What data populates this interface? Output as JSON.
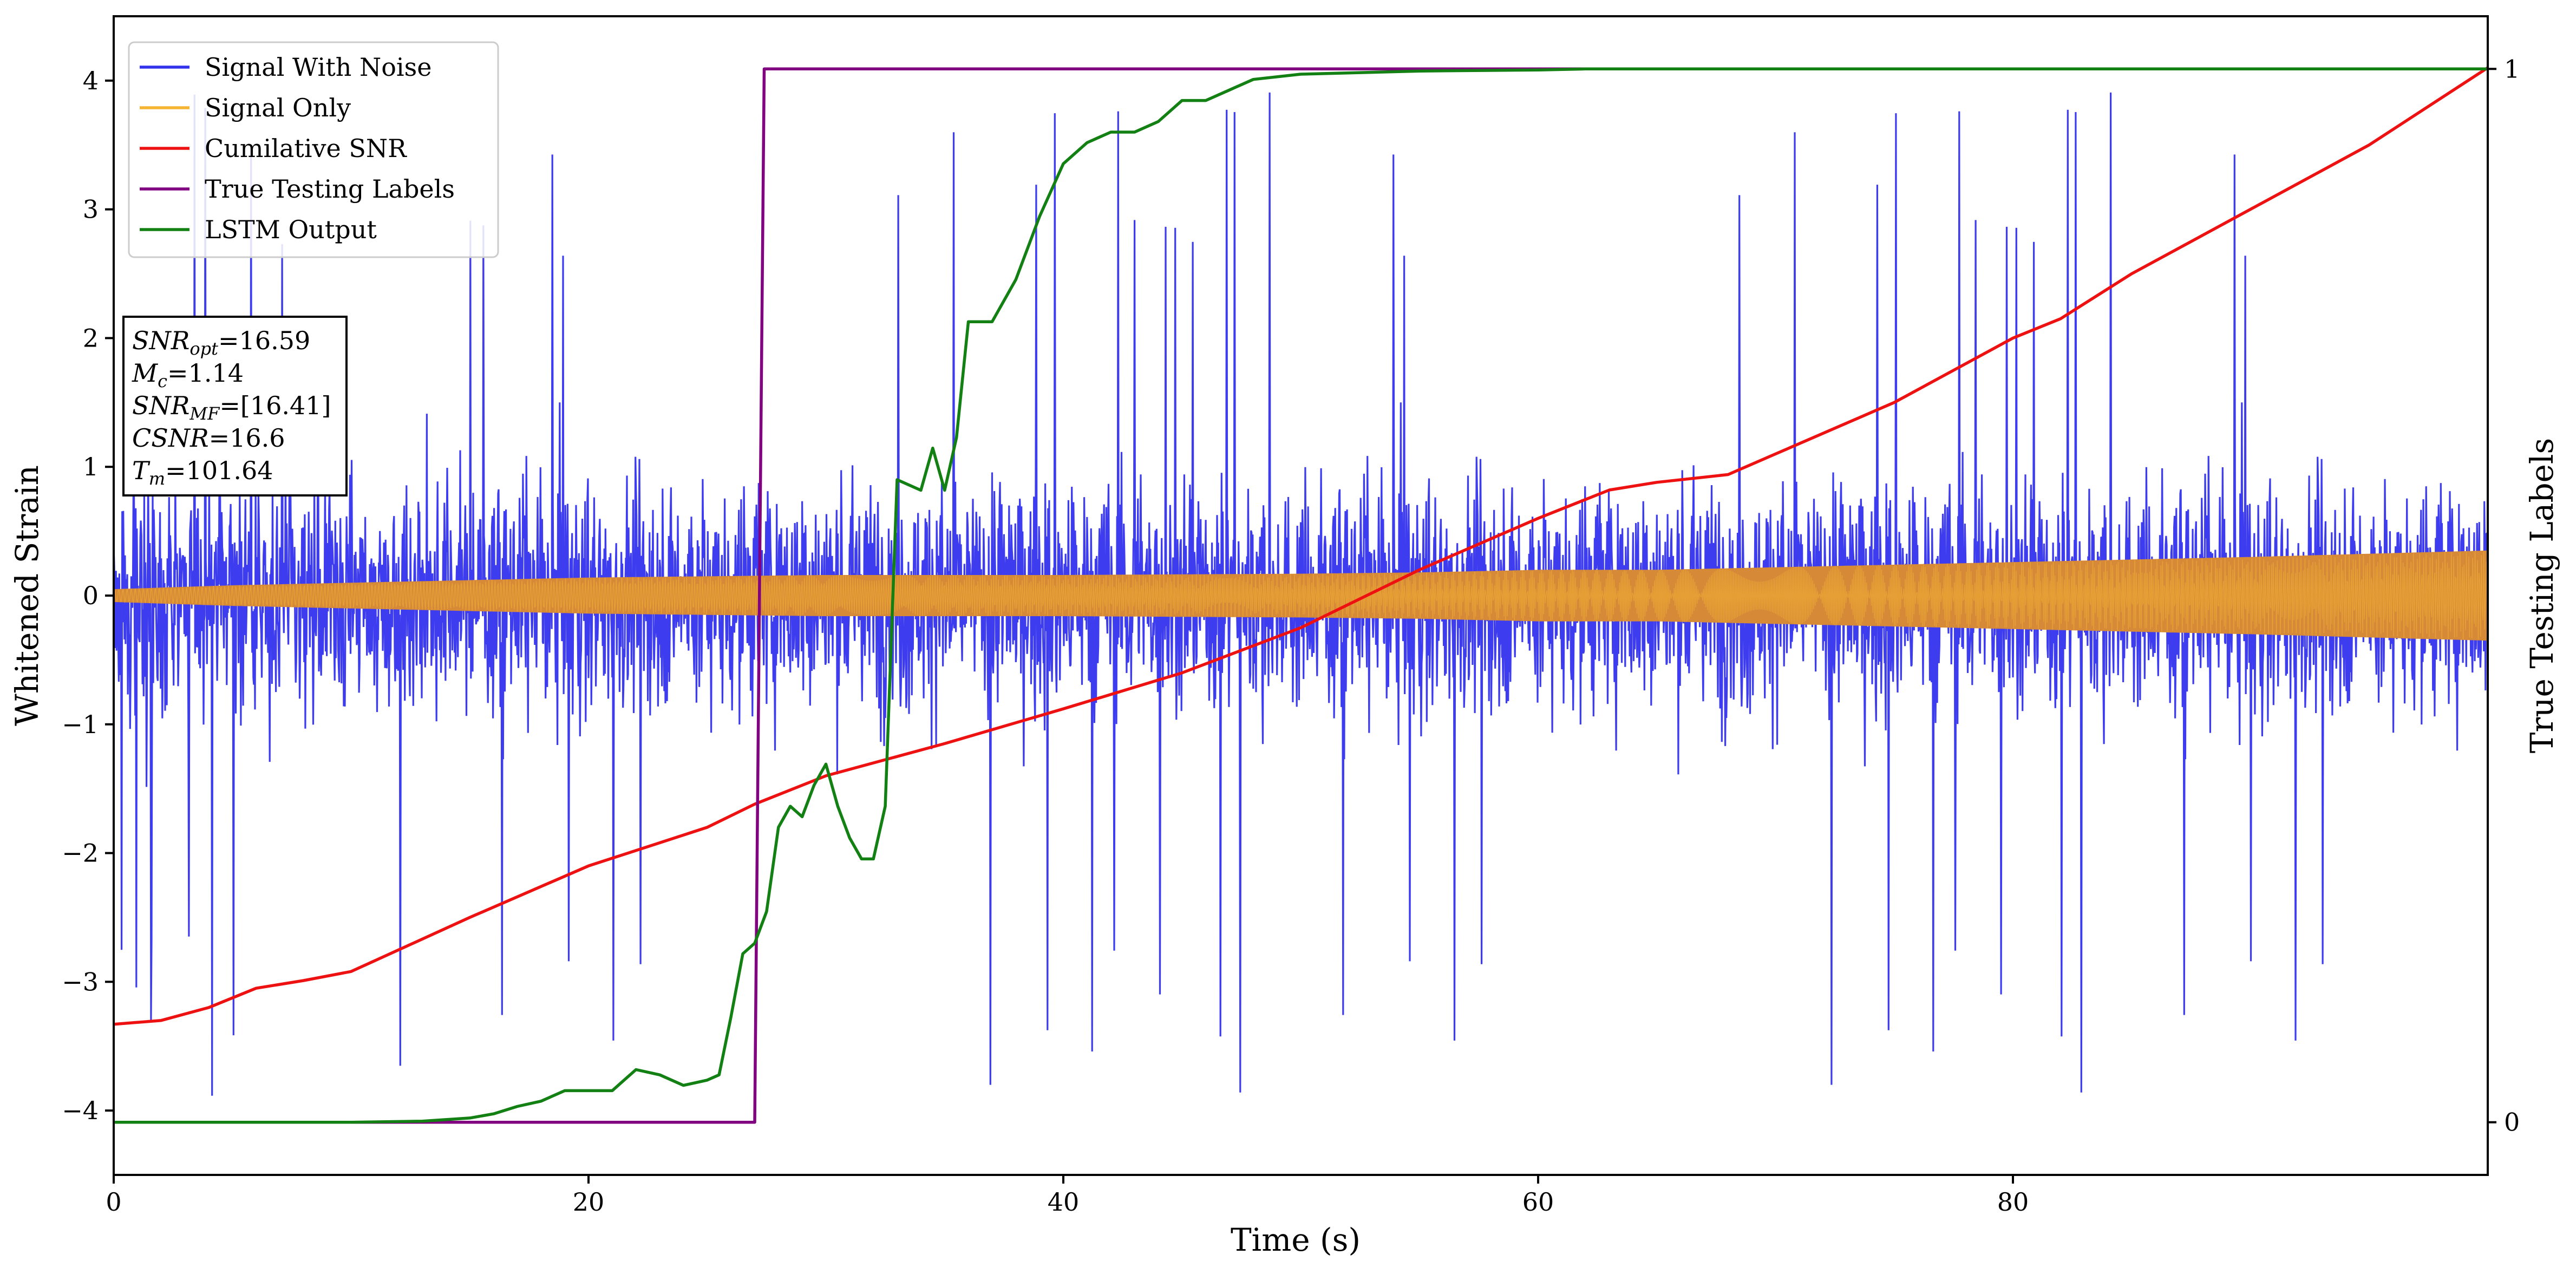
{
  "chart_data": {
    "type": "line",
    "title": "",
    "xlabel": "Time (s)",
    "ylabel": "Whitened Strain",
    "y2label": "True Testing Labels",
    "xlim": [
      0,
      100
    ],
    "ylim": [
      -4.5,
      4.5
    ],
    "y2lim": [
      -0.05,
      1.05
    ],
    "x_ticks": [
      0,
      20,
      40,
      60,
      80
    ],
    "y_ticks": [
      -4,
      -3,
      -2,
      -1,
      0,
      1,
      2,
      3,
      4
    ],
    "y2_ticks": [
      0,
      1
    ],
    "grid": false,
    "legend_position": "top-left",
    "series": [
      {
        "name": "Signal With Noise",
        "color": "#3333ee",
        "axis": "left",
        "kind": "noise",
        "typical_abs": 1.2,
        "peak_abs": 4.1
      },
      {
        "name": "Signal Only",
        "color": "#f5b431",
        "fill_color": "#d68a38",
        "axis": "left",
        "kind": "chirp",
        "envelope": {
          "x": [
            0,
            5,
            10,
            20,
            30,
            40,
            50,
            55,
            60,
            65,
            70,
            80,
            90,
            100
          ],
          "amp": [
            0.05,
            0.08,
            0.1,
            0.14,
            0.16,
            0.16,
            0.17,
            0.18,
            0.2,
            0.2,
            0.22,
            0.26,
            0.3,
            0.35
          ]
        }
      },
      {
        "name": "Cumilative SNR",
        "color": "#ee1111",
        "axis": "left",
        "x": [
          0,
          2,
          4,
          6,
          8,
          10,
          15,
          20,
          25,
          27,
          30,
          35,
          40,
          45,
          50,
          55,
          60,
          63,
          65,
          68,
          70,
          75,
          80,
          82,
          85,
          90,
          95,
          100
        ],
        "y": [
          -3.33,
          -3.3,
          -3.2,
          -3.05,
          -2.99,
          -2.92,
          -2.5,
          -2.1,
          -1.8,
          -1.62,
          -1.4,
          -1.15,
          -0.88,
          -0.6,
          -0.25,
          0.2,
          0.6,
          0.82,
          0.88,
          0.94,
          1.1,
          1.5,
          2.0,
          2.15,
          2.5,
          3.0,
          3.5,
          4.1
        ]
      },
      {
        "name": "True Testing Labels",
        "color": "#800080",
        "axis": "right",
        "x": [
          0,
          27,
          27.4,
          100
        ],
        "y": [
          0,
          0,
          1,
          1
        ]
      },
      {
        "name": "LSTM Output",
        "color": "#128012",
        "axis": "right",
        "x": [
          0,
          10,
          13,
          15,
          16,
          17,
          18,
          19,
          20,
          21,
          22,
          23,
          24,
          25,
          25.5,
          26,
          26.5,
          27,
          27.5,
          28,
          28.5,
          29,
          29.5,
          30,
          30.5,
          31,
          31.5,
          32,
          32.5,
          33,
          34,
          34.5,
          35,
          35.5,
          36,
          37,
          37.5,
          38,
          39,
          40,
          41,
          42,
          43,
          44,
          45,
          46,
          47,
          48,
          50,
          55,
          60,
          62,
          100
        ],
        "y": [
          0,
          0,
          0.001,
          0.004,
          0.008,
          0.015,
          0.02,
          0.03,
          0.03,
          0.03,
          0.05,
          0.045,
          0.035,
          0.04,
          0.045,
          0.1,
          0.16,
          0.17,
          0.2,
          0.28,
          0.3,
          0.29,
          0.32,
          0.34,
          0.3,
          0.27,
          0.25,
          0.25,
          0.3,
          0.61,
          0.6,
          0.64,
          0.6,
          0.65,
          0.76,
          0.76,
          0.78,
          0.8,
          0.86,
          0.91,
          0.93,
          0.94,
          0.94,
          0.95,
          0.97,
          0.97,
          0.98,
          0.99,
          0.995,
          0.998,
          0.999,
          1,
          1
        ]
      }
    ],
    "info_box": [
      {
        "main": "SNR",
        "sub": "opt",
        "value": "=16.59"
      },
      {
        "main": "M",
        "sub": "c",
        "value": "=1.14"
      },
      {
        "main": "SNR",
        "sub": "MF",
        "value": "=[16.41]"
      },
      {
        "main": "CSNR",
        "sub": "",
        "value": "=16.6"
      },
      {
        "main": "T",
        "sub": "m",
        "value": "=101.64"
      }
    ]
  }
}
